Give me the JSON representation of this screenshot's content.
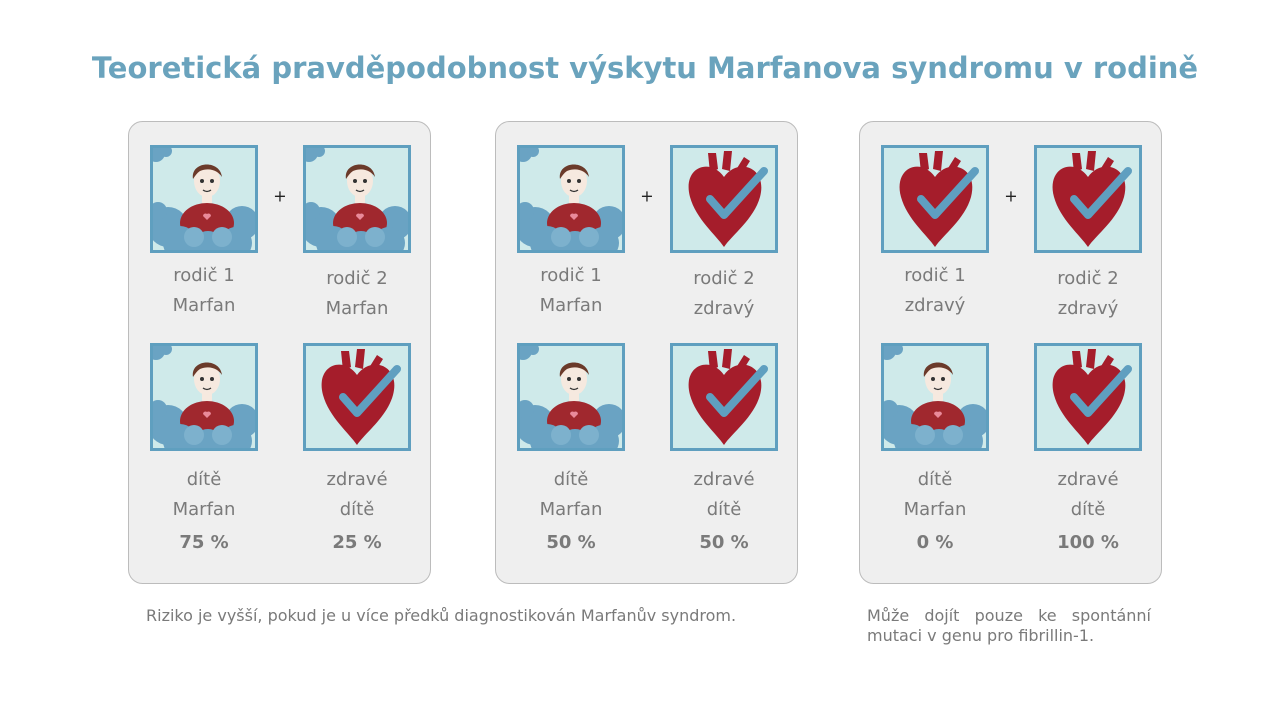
{
  "title": "Teoretická pravděpodobnost výskytu Marfanova syndromu v rodině",
  "panels": [
    {
      "parent1": {
        "role": "rodič 1",
        "status": "Marfan"
      },
      "plus": "+",
      "parent2": {
        "role": "rodič 2",
        "status": "Marfan"
      },
      "child1": {
        "line1": "dítě",
        "line2": "Marfan",
        "percent": "75 %"
      },
      "child2": {
        "line1": "zdravé",
        "line2": "dítě",
        "percent": "25 %"
      }
    },
    {
      "parent1": {
        "role": "rodič 1",
        "status": "Marfan"
      },
      "plus": "+",
      "parent2": {
        "role": "rodič 2",
        "status": "zdravý"
      },
      "child1": {
        "line1": "dítě",
        "line2": "Marfan",
        "percent": "50 %"
      },
      "child2": {
        "line1": "zdravé",
        "line2": "dítě",
        "percent": "50 %"
      }
    },
    {
      "parent1": {
        "role": "rodič 1",
        "status": "zdravý"
      },
      "plus": "+",
      "parent2": {
        "role": "rodič 2",
        "status": "zdravý"
      },
      "child1": {
        "line1": "dítě",
        "line2": "Marfan",
        "percent": "0 %"
      },
      "child2": {
        "line1": "zdravé",
        "line2": "dítě",
        "percent": "100 %"
      }
    }
  ],
  "notes": [
    "Riziko je vyšší, pokud je u více předků diagnostikován Marfanův syndrom.",
    "Může dojít pouze ke spontánní mutaci v genu pro fibrillin-1."
  ]
}
